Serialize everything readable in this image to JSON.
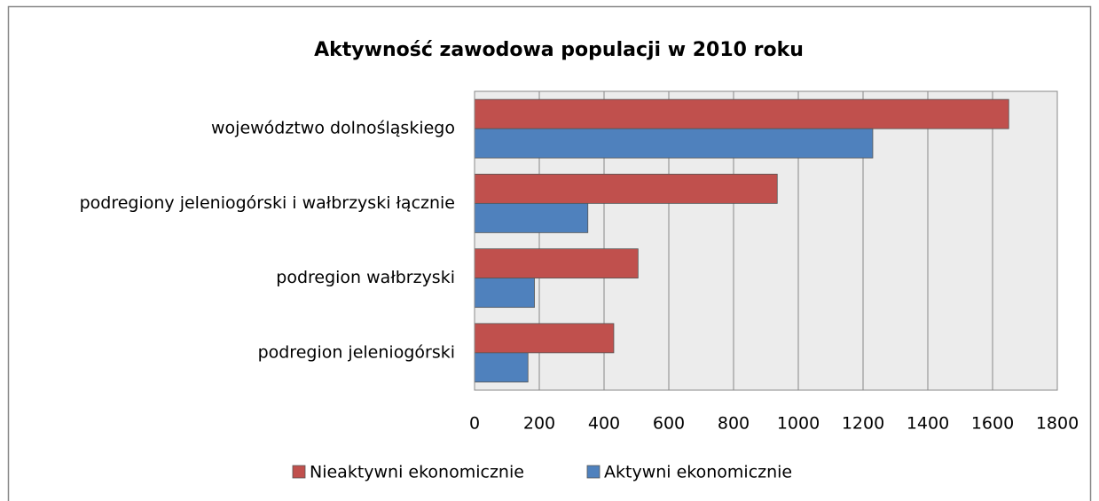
{
  "chart_data": {
    "type": "bar",
    "orientation": "horizontal",
    "title": "Aktywność zawodowa populacji  w 2010 roku",
    "categories": [
      "województwo dolnośląskiego",
      "podregiony jeleniogórski i wałbrzyski łącznie",
      "podregion wałbrzyski",
      "podregion jeleniogórski"
    ],
    "series": [
      {
        "name": "Nieaktywni ekonomicznie",
        "color": "#c0504d",
        "values": [
          1650,
          935,
          505,
          430
        ]
      },
      {
        "name": "Aktywni ekonomicznie",
        "color": "#4f81bd",
        "values": [
          1230,
          350,
          185,
          165
        ]
      }
    ],
    "xlim": [
      0,
      1800
    ],
    "xticks": [
      0,
      200,
      400,
      600,
      800,
      1000,
      1200,
      1400,
      1600,
      1800
    ],
    "grid": true,
    "legend": "bottom"
  }
}
